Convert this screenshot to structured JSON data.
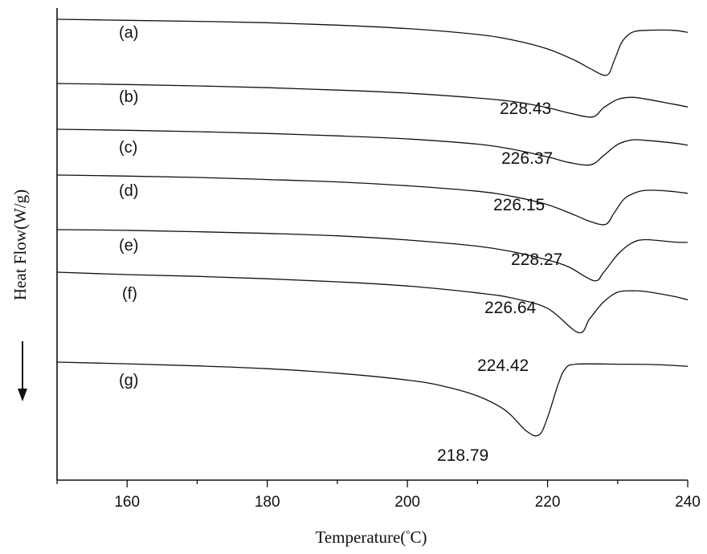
{
  "chart_data": {
    "type": "line",
    "xlabel": "Temperature(",
    "xlabel_unit": "°C)",
    "ylabel": "Heat Flow(W/g)",
    "xlim": [
      150,
      240
    ],
    "xticks": [
      160,
      180,
      200,
      220,
      240
    ],
    "x_minor_step": 10,
    "y_ticks": "none",
    "axis_arrow": "down",
    "series": [
      {
        "name": "(a)",
        "peak_label": "228.43",
        "points": [
          [
            150,
            0.0
          ],
          [
            160,
            -0.03
          ],
          [
            170,
            -0.06
          ],
          [
            180,
            -0.1
          ],
          [
            190,
            -0.17
          ],
          [
            200,
            -0.27
          ],
          [
            210,
            -0.44
          ],
          [
            215,
            -0.6
          ],
          [
            220,
            -0.86
          ],
          [
            224,
            -1.2
          ],
          [
            226,
            -1.42
          ],
          [
            228.43,
            -1.62
          ],
          [
            229.5,
            -1.2
          ],
          [
            230.5,
            -0.7
          ],
          [
            231.5,
            -0.45
          ],
          [
            232.5,
            -0.35
          ],
          [
            234,
            -0.32
          ],
          [
            238,
            -0.32
          ],
          [
            240,
            -0.38
          ]
        ]
      },
      {
        "name": "(b)",
        "peak_label": "226.37",
        "points": [
          [
            150,
            0.0
          ],
          [
            160,
            -0.03
          ],
          [
            170,
            -0.07
          ],
          [
            180,
            -0.12
          ],
          [
            190,
            -0.19
          ],
          [
            200,
            -0.28
          ],
          [
            210,
            -0.42
          ],
          [
            215,
            -0.52
          ],
          [
            220,
            -0.7
          ],
          [
            223,
            -0.85
          ],
          [
            226.37,
            -0.97
          ],
          [
            228,
            -0.7
          ],
          [
            230,
            -0.46
          ],
          [
            232,
            -0.4
          ],
          [
            234,
            -0.45
          ],
          [
            238,
            -0.6
          ],
          [
            240,
            -0.68
          ]
        ]
      },
      {
        "name": "(c)",
        "peak_label": "226.15",
        "points": [
          [
            150,
            0.0
          ],
          [
            160,
            -0.03
          ],
          [
            170,
            -0.07
          ],
          [
            180,
            -0.12
          ],
          [
            190,
            -0.19
          ],
          [
            200,
            -0.28
          ],
          [
            210,
            -0.43
          ],
          [
            215,
            -0.58
          ],
          [
            220,
            -0.8
          ],
          [
            223,
            -0.96
          ],
          [
            226.15,
            -1.03
          ],
          [
            228,
            -0.76
          ],
          [
            230,
            -0.44
          ],
          [
            232,
            -0.31
          ],
          [
            234,
            -0.32
          ],
          [
            238,
            -0.4
          ],
          [
            240,
            -0.46
          ]
        ]
      },
      {
        "name": "(d)",
        "peak_label": "228.27",
        "points": [
          [
            150,
            0.0
          ],
          [
            160,
            -0.03
          ],
          [
            170,
            -0.07
          ],
          [
            180,
            -0.13
          ],
          [
            190,
            -0.2
          ],
          [
            200,
            -0.31
          ],
          [
            210,
            -0.47
          ],
          [
            215,
            -0.62
          ],
          [
            220,
            -0.86
          ],
          [
            224,
            -1.17
          ],
          [
            226,
            -1.34
          ],
          [
            228.27,
            -1.43
          ],
          [
            229.5,
            -1.1
          ],
          [
            231,
            -0.68
          ],
          [
            233,
            -0.48
          ],
          [
            235,
            -0.44
          ],
          [
            238,
            -0.48
          ],
          [
            240,
            -0.53
          ]
        ]
      },
      {
        "name": "(e)",
        "peak_label": "226.64",
        "points": [
          [
            150,
            0.0
          ],
          [
            160,
            -0.02
          ],
          [
            170,
            -0.06
          ],
          [
            180,
            -0.11
          ],
          [
            190,
            -0.18
          ],
          [
            200,
            -0.3
          ],
          [
            210,
            -0.48
          ],
          [
            215,
            -0.64
          ],
          [
            220,
            -0.88
          ],
          [
            223,
            -1.08
          ],
          [
            226.64,
            -1.48
          ],
          [
            228,
            -1.24
          ],
          [
            230,
            -0.72
          ],
          [
            232,
            -0.39
          ],
          [
            234,
            -0.29
          ],
          [
            238,
            -0.36
          ],
          [
            240,
            -0.37
          ]
        ]
      },
      {
        "name": "(f)",
        "peak_label": "224.42",
        "points": [
          [
            150,
            0.0
          ],
          [
            160,
            -0.07
          ],
          [
            170,
            -0.12
          ],
          [
            180,
            -0.19
          ],
          [
            190,
            -0.28
          ],
          [
            200,
            -0.4
          ],
          [
            210,
            -0.6
          ],
          [
            215,
            -0.75
          ],
          [
            220,
            -1.05
          ],
          [
            224.42,
            -1.75
          ],
          [
            226,
            -1.35
          ],
          [
            228,
            -0.86
          ],
          [
            230,
            -0.58
          ],
          [
            232,
            -0.54
          ],
          [
            234,
            -0.56
          ],
          [
            238,
            -0.7
          ],
          [
            240,
            -0.8
          ]
        ]
      },
      {
        "name": "(g)",
        "peak_label": "218.79",
        "points": [
          [
            150,
            0.0
          ],
          [
            160,
            -0.05
          ],
          [
            170,
            -0.11
          ],
          [
            180,
            -0.19
          ],
          [
            190,
            -0.32
          ],
          [
            200,
            -0.52
          ],
          [
            205,
            -0.69
          ],
          [
            210,
            -0.98
          ],
          [
            214,
            -1.4
          ],
          [
            217,
            -2.0
          ],
          [
            218.79,
            -2.11
          ],
          [
            220,
            -1.6
          ],
          [
            221.5,
            -0.65
          ],
          [
            222.5,
            -0.2
          ],
          [
            224,
            -0.06
          ],
          [
            230,
            -0.06
          ],
          [
            235,
            -0.07
          ],
          [
            240,
            -0.12
          ]
        ]
      }
    ]
  }
}
